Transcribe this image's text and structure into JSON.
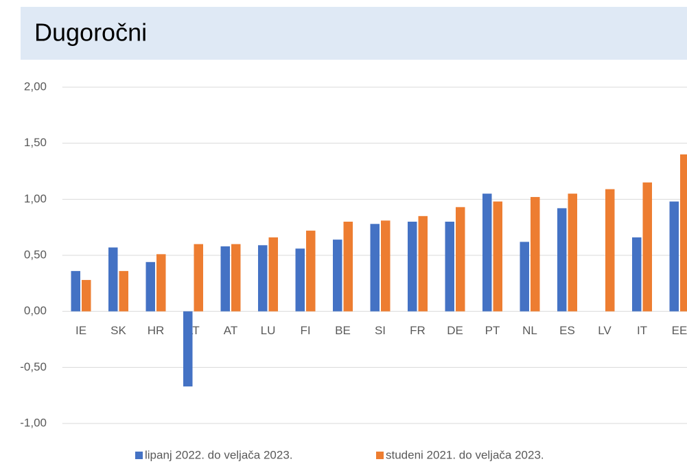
{
  "chart_data": {
    "type": "bar",
    "title": "Dugoročni",
    "categories": [
      "IE",
      "SK",
      "HR",
      "LT",
      "AT",
      "LU",
      "FI",
      "BE",
      "SI",
      "FR",
      "DE",
      "PT",
      "NL",
      "ES",
      "LV",
      "IT",
      "EE"
    ],
    "series": [
      {
        "name": "lipanj 2022. do veljača 2023.",
        "color": "#4472c4",
        "values": [
          0.36,
          0.57,
          0.44,
          -0.67,
          0.58,
          0.59,
          0.56,
          0.64,
          0.78,
          0.8,
          0.8,
          1.05,
          0.62,
          0.92,
          null,
          0.66,
          0.98
        ]
      },
      {
        "name": "studeni 2021. do veljača 2023.",
        "color": "#ed7d31",
        "values": [
          0.28,
          0.36,
          0.51,
          0.6,
          0.6,
          0.66,
          0.72,
          0.8,
          0.81,
          0.85,
          0.93,
          0.98,
          1.02,
          1.05,
          1.09,
          1.15,
          1.4
        ]
      }
    ],
    "ylim": [
      -1,
      2
    ],
    "yticks": [
      {
        "value": -1,
        "label": "-1,00"
      },
      {
        "value": -0.5,
        "label": "-0,50"
      },
      {
        "value": 0,
        "label": "0,00"
      },
      {
        "value": 0.5,
        "label": "0,50"
      },
      {
        "value": 1,
        "label": "1,00"
      },
      {
        "value": 1.5,
        "label": "1,50"
      },
      {
        "value": 2,
        "label": "2,00"
      }
    ],
    "grid": true,
    "legend": "bottom"
  }
}
